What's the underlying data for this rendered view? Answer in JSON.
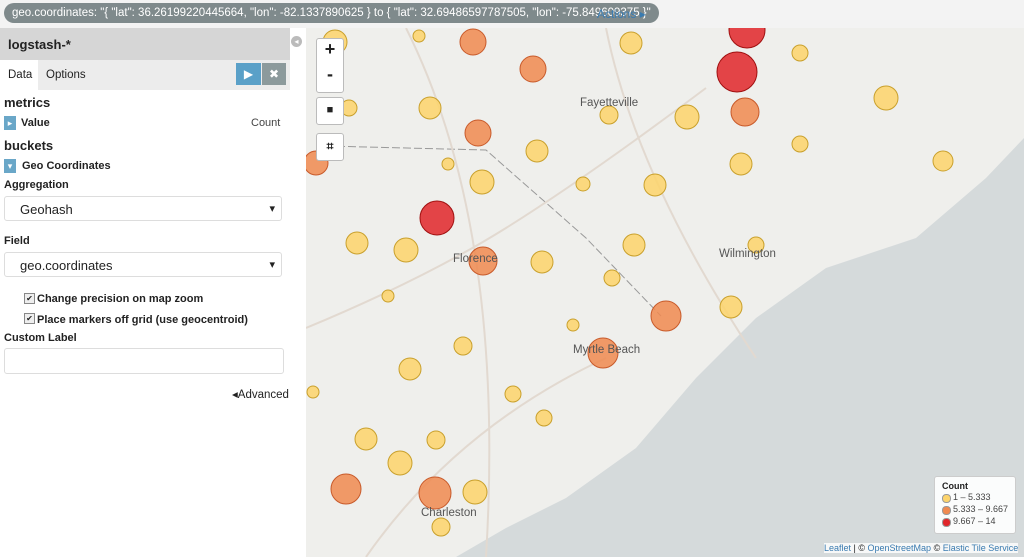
{
  "filter_bar": {
    "filter": "geo.coordinates: \"{ \"lat\": 36.26199220445664, \"lon\": -82.1337890625 } to { \"lat\": 32.69486597787505, \"lon\": -75.849609375 }\"",
    "actions": "Actions"
  },
  "sidebar": {
    "index_pattern": "logstash-*",
    "tabs": [
      "Data",
      "Options"
    ],
    "metrics": {
      "heading": "metrics",
      "item": "Value",
      "item_value": "Count"
    },
    "buckets": {
      "heading": "buckets",
      "item": "Geo Coordinates"
    },
    "aggregation": {
      "label": "Aggregation",
      "value": "Geohash"
    },
    "field": {
      "label": "Field",
      "value": "geo.coordinates"
    },
    "checkboxes": [
      "Change precision on map zoom",
      "Place markers off grid (use geocentroid)"
    ],
    "custom_label": "Custom Label",
    "advanced": "Advanced"
  },
  "map": {
    "zoom_in": "+",
    "zoom_out": "-",
    "cities": [
      "Fayetteville",
      "Florence",
      "Wilmington",
      "Myrtle Beach",
      "Charleston"
    ],
    "legend": {
      "title": "Count",
      "items": [
        {
          "label": "1 – 5.333",
          "color": "#fdd46b"
        },
        {
          "label": "5.333 – 9.667",
          "color": "#f08a50"
        },
        {
          "label": "9.667 – 14",
          "color": "#e0262a"
        }
      ]
    },
    "attribution": [
      "Leaflet",
      " | © ",
      "OpenStreetMap",
      " © ",
      "Elastic Tile Service"
    ]
  }
}
